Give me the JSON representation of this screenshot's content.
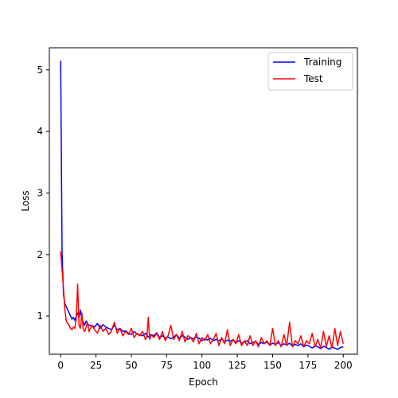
{
  "chart_data": {
    "type": "line",
    "xlabel": "Epoch",
    "ylabel": "Loss",
    "xlim": [
      -8,
      210
    ],
    "ylim": [
      0.38,
      5.36
    ],
    "xticks": [
      0,
      25,
      50,
      75,
      100,
      125,
      150,
      175,
      200
    ],
    "yticks": [
      1,
      2,
      3,
      4,
      5
    ],
    "grid": false,
    "legend_position": "upper right",
    "series": [
      {
        "name": "Training",
        "color": "#0000ff",
        "x": [
          0,
          1,
          2,
          3,
          4,
          5,
          6,
          7,
          8,
          9,
          10,
          11,
          12,
          13,
          14,
          15,
          16,
          17,
          18,
          19,
          20,
          22,
          24,
          26,
          28,
          30,
          32,
          34,
          36,
          38,
          40,
          42,
          44,
          46,
          48,
          50,
          52,
          54,
          56,
          58,
          60,
          62,
          64,
          66,
          68,
          70,
          72,
          74,
          76,
          78,
          80,
          82,
          84,
          86,
          88,
          90,
          92,
          94,
          96,
          98,
          100,
          102,
          104,
          106,
          108,
          110,
          112,
          114,
          116,
          118,
          120,
          122,
          124,
          126,
          128,
          130,
          132,
          134,
          136,
          138,
          140,
          142,
          144,
          146,
          148,
          150,
          152,
          154,
          156,
          158,
          160,
          162,
          164,
          166,
          168,
          170,
          172,
          174,
          176,
          178,
          180,
          182,
          184,
          186,
          188,
          190,
          192,
          194,
          196,
          198,
          200
        ],
        "y": [
          5.15,
          2.05,
          1.35,
          1.2,
          1.15,
          1.1,
          1.05,
          1.0,
          0.95,
          0.98,
          0.93,
          1.0,
          1.05,
          0.98,
          1.1,
          0.95,
          0.9,
          0.85,
          0.92,
          0.88,
          0.85,
          0.85,
          0.82,
          0.88,
          0.8,
          0.86,
          0.82,
          0.8,
          0.78,
          0.85,
          0.78,
          0.8,
          0.75,
          0.76,
          0.72,
          0.7,
          0.75,
          0.71,
          0.7,
          0.68,
          0.72,
          0.66,
          0.7,
          0.68,
          0.73,
          0.65,
          0.68,
          0.64,
          0.66,
          0.63,
          0.66,
          0.7,
          0.64,
          0.68,
          0.66,
          0.62,
          0.65,
          0.63,
          0.66,
          0.64,
          0.6,
          0.63,
          0.61,
          0.64,
          0.6,
          0.62,
          0.6,
          0.63,
          0.58,
          0.61,
          0.59,
          0.62,
          0.57,
          0.6,
          0.56,
          0.58,
          0.6,
          0.55,
          0.57,
          0.59,
          0.54,
          0.57,
          0.55,
          0.58,
          0.53,
          0.56,
          0.54,
          0.57,
          0.52,
          0.55,
          0.53,
          0.56,
          0.51,
          0.54,
          0.52,
          0.55,
          0.5,
          0.53,
          0.51,
          0.48,
          0.52,
          0.5,
          0.47,
          0.51,
          0.49,
          0.46,
          0.5,
          0.48,
          0.46,
          0.49,
          0.5
        ]
      },
      {
        "name": "Test",
        "color": "#ff0000",
        "x": [
          0,
          1,
          2,
          3,
          4,
          5,
          6,
          7,
          8,
          9,
          10,
          11,
          12,
          13,
          14,
          15,
          16,
          17,
          18,
          19,
          20,
          22,
          24,
          26,
          28,
          30,
          32,
          34,
          36,
          38,
          40,
          42,
          44,
          46,
          48,
          50,
          52,
          54,
          56,
          58,
          60,
          61,
          62,
          63,
          64,
          66,
          68,
          70,
          72,
          74,
          76,
          78,
          80,
          82,
          84,
          86,
          88,
          90,
          92,
          94,
          96,
          98,
          100,
          102,
          104,
          106,
          108,
          110,
          112,
          114,
          116,
          118,
          120,
          122,
          124,
          126,
          128,
          130,
          132,
          134,
          136,
          138,
          140,
          142,
          144,
          146,
          148,
          150,
          152,
          154,
          156,
          158,
          160,
          162,
          164,
          166,
          168,
          170,
          172,
          174,
          176,
          178,
          180,
          182,
          184,
          186,
          188,
          190,
          192,
          194,
          196,
          198,
          200
        ],
        "y": [
          2.05,
          1.75,
          1.45,
          1.1,
          0.92,
          0.88,
          0.85,
          0.8,
          0.78,
          0.82,
          0.8,
          0.95,
          1.52,
          0.85,
          0.8,
          1.05,
          0.78,
          0.75,
          0.82,
          0.9,
          0.75,
          0.85,
          0.78,
          0.72,
          0.85,
          0.75,
          0.8,
          0.7,
          0.76,
          0.9,
          0.72,
          0.8,
          0.68,
          0.75,
          0.7,
          0.8,
          0.65,
          0.72,
          0.68,
          0.75,
          0.62,
          0.65,
          0.98,
          0.62,
          0.7,
          0.65,
          0.72,
          0.62,
          0.75,
          0.6,
          0.68,
          0.85,
          0.62,
          0.7,
          0.6,
          0.75,
          0.58,
          0.68,
          0.65,
          0.58,
          0.72,
          0.55,
          0.65,
          0.6,
          0.7,
          0.55,
          0.62,
          0.72,
          0.52,
          0.65,
          0.55,
          0.78,
          0.52,
          0.62,
          0.55,
          0.7,
          0.52,
          0.6,
          0.52,
          0.68,
          0.52,
          0.6,
          0.5,
          0.65,
          0.55,
          0.6,
          0.52,
          0.8,
          0.52,
          0.6,
          0.5,
          0.7,
          0.52,
          0.9,
          0.5,
          0.6,
          0.55,
          0.68,
          0.5,
          0.6,
          0.55,
          0.72,
          0.5,
          0.62,
          0.48,
          0.75,
          0.5,
          0.68,
          0.48,
          0.8,
          0.52,
          0.75,
          0.55
        ]
      }
    ]
  }
}
